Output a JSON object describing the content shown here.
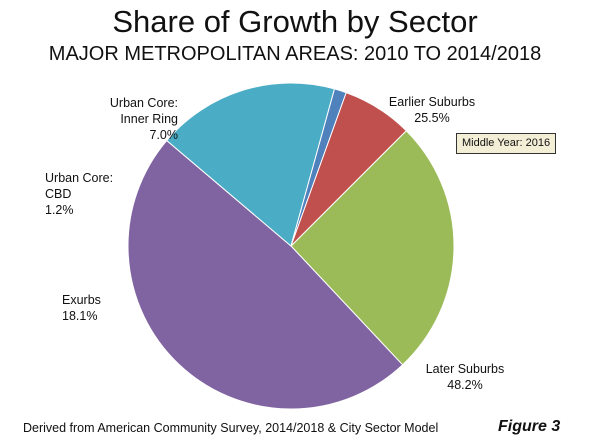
{
  "chart_data": {
    "type": "pie",
    "title": "Share of Growth by Sector",
    "subtitle": "MAJOR METROPOLITAN AREAS: 2010 TO 2014/2018",
    "slices": [
      {
        "name_lines": [
          "Earlier Suburbs"
        ],
        "value": 25.5,
        "value_label": "25.5%",
        "color": "#9bbb59"
      },
      {
        "name_lines": [
          "Later Suburbs"
        ],
        "value": 48.2,
        "value_label": "48.2%",
        "color": "#8064a2"
      },
      {
        "name_lines": [
          "Exurbs"
        ],
        "value": 18.1,
        "value_label": "18.1%",
        "color": "#4bacc6"
      },
      {
        "name_lines": [
          "Urban Core:",
          "CBD"
        ],
        "value": 1.2,
        "value_label": "1.2%",
        "color": "#4f81bd"
      },
      {
        "name_lines": [
          "Urban Core:",
          "Inner Ring"
        ],
        "value": 7.0,
        "value_label": "7.0%",
        "color": "#c0504d"
      }
    ],
    "annotation": "Middle Year: 2016",
    "source_note": "Derived from American Community Survey, 2014/2018 & City Sector Model",
    "figure_label": "Figure 3"
  }
}
